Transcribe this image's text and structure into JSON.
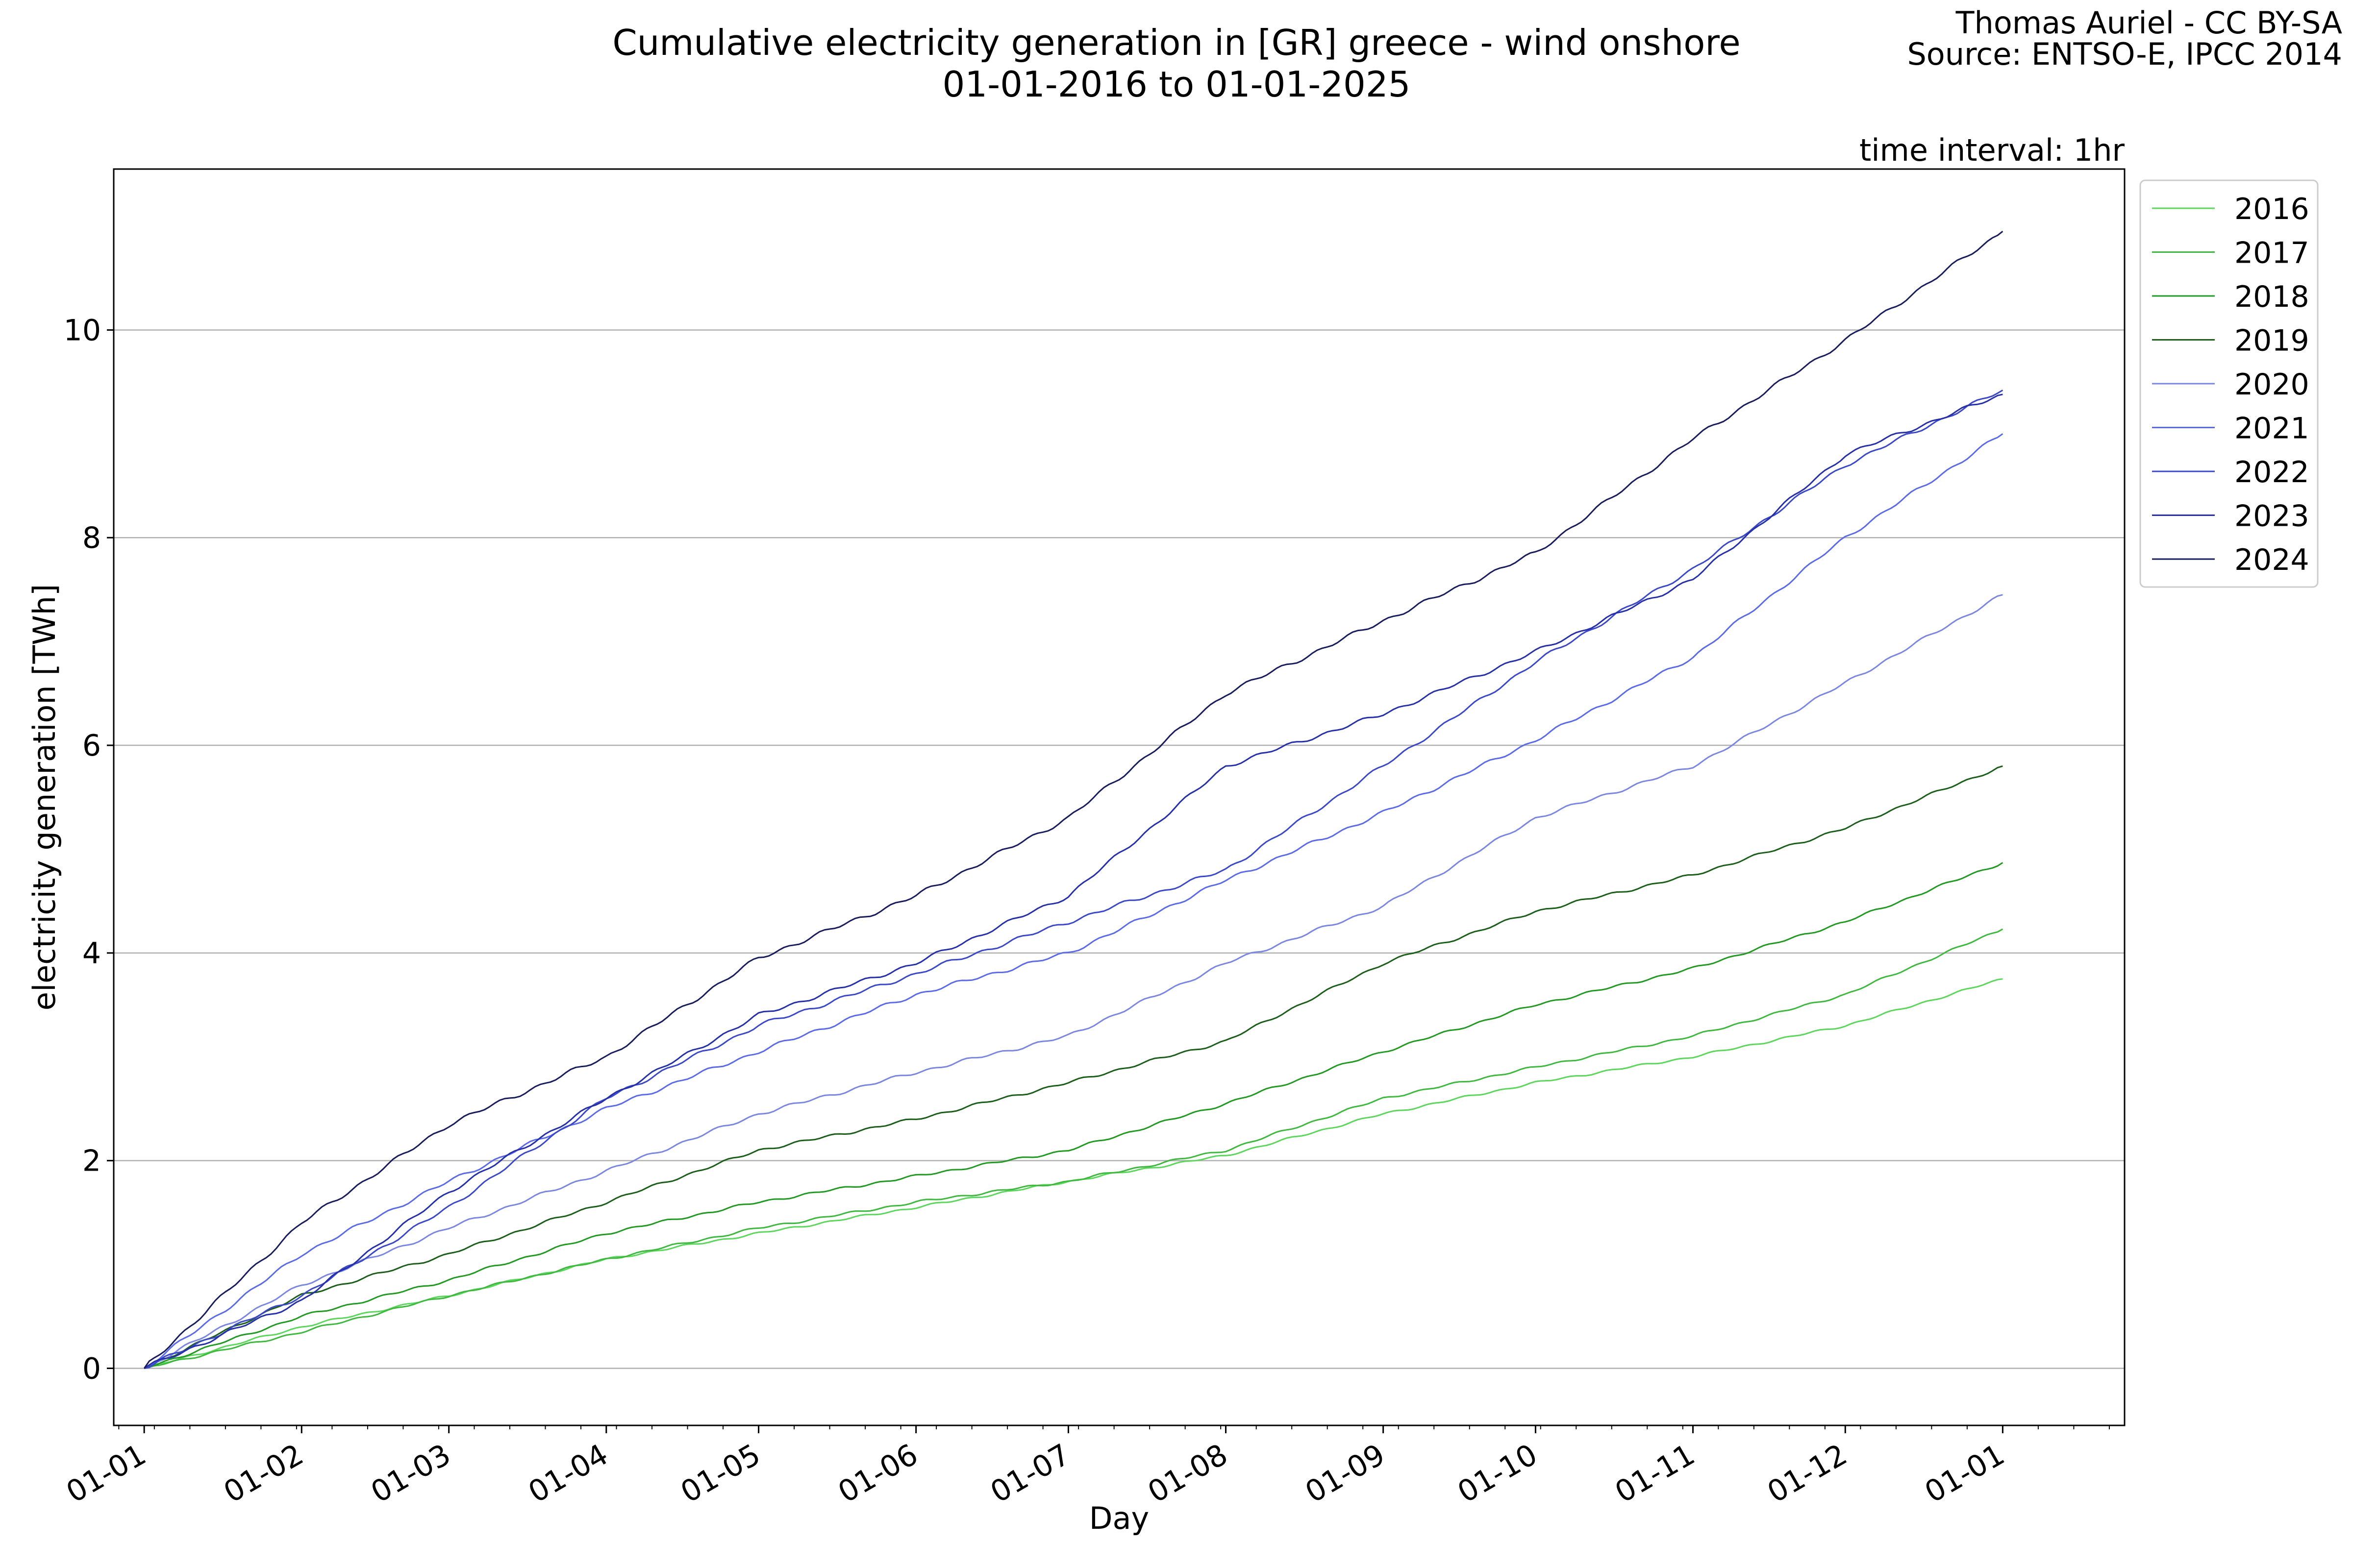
{
  "header": {
    "title_line1": "Cumulative electricity generation in [GR] greece - wind onshore",
    "title_line2": "01-01-2016 to 01-01-2025",
    "credit_line1": "Thomas Auriel - CC BY-SA",
    "credit_line2": "Source: ENTSO-E, IPCC 2014",
    "interval_note": "time interval: 1hr"
  },
  "chart_data": {
    "type": "line",
    "title": "Cumulative electricity generation in [GR] greece - wind onshore",
    "subtitle": "01-01-2016 to 01-01-2025",
    "xlabel": "Day",
    "ylabel": "electricity generation [TWh]",
    "x_ticks": [
      "01-01",
      "01-02",
      "01-03",
      "01-04",
      "01-05",
      "01-06",
      "01-07",
      "01-08",
      "01-09",
      "01-10",
      "01-11",
      "01-12",
      "01-01"
    ],
    "y_ticks": [
      0,
      2,
      4,
      6,
      8,
      10
    ],
    "xlim": [
      -6,
      390
    ],
    "ylim": [
      -0.55,
      11.55
    ],
    "grid": "horizontal",
    "legend_position": "outside-top-right",
    "x": [
      0,
      31,
      60,
      91,
      121,
      152,
      182,
      213,
      244,
      274,
      305,
      335,
      366
    ],
    "series": [
      {
        "name": "2016",
        "color": "#5cd65c",
        "values": [
          0,
          0.4,
          0.7,
          1.05,
          1.3,
          1.55,
          1.8,
          2.05,
          2.45,
          2.75,
          3.0,
          3.3,
          3.75
        ]
      },
      {
        "name": "2017",
        "color": "#3eb83e",
        "values": [
          0,
          0.35,
          0.7,
          1.05,
          1.35,
          1.6,
          1.8,
          2.1,
          2.6,
          2.9,
          3.2,
          3.6,
          4.23
        ]
      },
      {
        "name": "2018",
        "color": "#229922",
        "values": [
          0,
          0.5,
          0.85,
          1.3,
          1.6,
          1.85,
          2.1,
          2.55,
          3.05,
          3.5,
          3.85,
          4.3,
          4.87
        ]
      },
      {
        "name": "2019",
        "color": "#1a5e1a",
        "values": [
          0,
          0.7,
          1.1,
          1.6,
          2.1,
          2.4,
          2.75,
          3.15,
          3.9,
          4.4,
          4.75,
          5.2,
          5.8
        ]
      },
      {
        "name": "2020",
        "color": "#7b86e0",
        "values": [
          0,
          0.8,
          1.35,
          1.9,
          2.45,
          2.85,
          3.2,
          3.9,
          4.45,
          5.3,
          5.8,
          6.6,
          7.45
        ]
      },
      {
        "name": "2021",
        "color": "#5b6ae6",
        "values": [
          0,
          1.1,
          1.8,
          2.5,
          3.05,
          3.6,
          4.0,
          4.7,
          5.35,
          6.05,
          6.85,
          8.0,
          9.0
        ]
      },
      {
        "name": "2022",
        "color": "#3a48c8",
        "values": [
          0,
          0.7,
          1.55,
          2.6,
          3.3,
          3.8,
          4.3,
          4.8,
          5.8,
          6.8,
          7.7,
          8.7,
          9.42
        ]
      },
      {
        "name": "2023",
        "color": "#2530a8",
        "values": [
          0,
          0.65,
          1.7,
          2.6,
          3.4,
          3.9,
          4.55,
          5.8,
          6.3,
          6.9,
          7.6,
          8.8,
          9.38
        ]
      },
      {
        "name": "2024",
        "color": "#181c5c",
        "values": [
          0,
          1.4,
          2.35,
          3.0,
          3.95,
          4.55,
          5.3,
          6.5,
          7.2,
          7.85,
          8.95,
          9.9,
          10.95
        ]
      }
    ]
  }
}
